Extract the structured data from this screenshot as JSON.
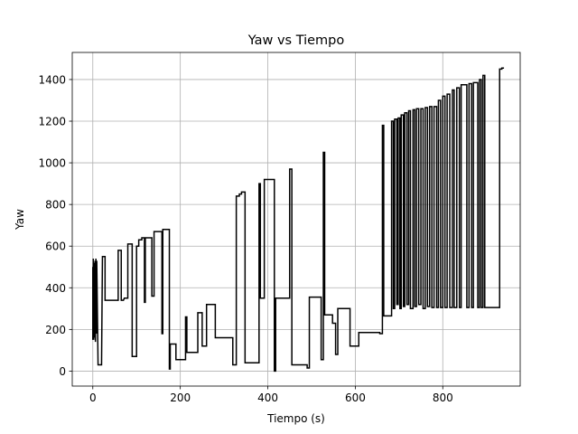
{
  "chart_data": {
    "type": "line",
    "title": "Yaw vs Tiempo",
    "xlabel": "Tiempo (s)",
    "ylabel": "Yaw",
    "xlim": [
      -47,
      977
    ],
    "ylim": [
      -72,
      1530
    ],
    "grid": true,
    "x_ticks": [
      0,
      200,
      400,
      600,
      800
    ],
    "y_ticks": [
      0,
      200,
      400,
      600,
      800,
      1000,
      1200,
      1400
    ],
    "series": [
      {
        "color": "#000000",
        "step_points": [
          [
            0,
            500
          ],
          [
            0,
            150
          ],
          [
            1,
            540
          ],
          [
            2,
            150
          ],
          [
            3,
            520
          ],
          [
            4,
            160
          ],
          [
            5,
            530
          ],
          [
            6,
            140
          ],
          [
            7,
            540
          ],
          [
            8,
            180
          ],
          [
            9,
            530
          ],
          [
            12,
            30
          ],
          [
            20,
            30
          ],
          [
            22,
            550
          ],
          [
            28,
            550
          ],
          [
            28,
            340
          ],
          [
            58,
            340
          ],
          [
            58,
            580
          ],
          [
            65,
            580
          ],
          [
            65,
            340
          ],
          [
            70,
            340
          ],
          [
            72,
            350
          ],
          [
            80,
            350
          ],
          [
            80,
            610
          ],
          [
            90,
            610
          ],
          [
            90,
            70
          ],
          [
            100,
            70
          ],
          [
            100,
            600
          ],
          [
            105,
            600
          ],
          [
            105,
            630
          ],
          [
            112,
            630
          ],
          [
            112,
            640
          ],
          [
            118,
            640
          ],
          [
            118,
            330
          ],
          [
            120,
            330
          ],
          [
            120,
            640
          ],
          [
            135,
            640
          ],
          [
            135,
            360
          ],
          [
            140,
            360
          ],
          [
            140,
            670
          ],
          [
            158,
            670
          ],
          [
            158,
            180
          ],
          [
            160,
            180
          ],
          [
            160,
            680
          ],
          [
            175,
            680
          ],
          [
            175,
            10
          ],
          [
            177,
            10
          ],
          [
            177,
            130
          ],
          [
            190,
            130
          ],
          [
            190,
            55
          ],
          [
            212,
            55
          ],
          [
            212,
            260
          ],
          [
            215,
            260
          ],
          [
            215,
            90
          ],
          [
            240,
            90
          ],
          [
            240,
            280
          ],
          [
            250,
            280
          ],
          [
            250,
            120
          ],
          [
            260,
            120
          ],
          [
            260,
            320
          ],
          [
            280,
            320
          ],
          [
            280,
            160
          ],
          [
            320,
            160
          ],
          [
            320,
            30
          ],
          [
            328,
            30
          ],
          [
            328,
            840
          ],
          [
            335,
            840
          ],
          [
            335,
            850
          ],
          [
            340,
            850
          ],
          [
            340,
            860
          ],
          [
            348,
            860
          ],
          [
            348,
            40
          ],
          [
            380,
            40
          ],
          [
            380,
            900
          ],
          [
            383,
            900
          ],
          [
            383,
            350
          ],
          [
            392,
            350
          ],
          [
            392,
            920
          ],
          [
            415,
            920
          ],
          [
            415,
            0
          ],
          [
            418,
            0
          ],
          [
            418,
            350
          ],
          [
            450,
            350
          ],
          [
            450,
            970
          ],
          [
            455,
            970
          ],
          [
            455,
            30
          ],
          [
            490,
            30
          ],
          [
            490,
            15
          ],
          [
            495,
            15
          ],
          [
            495,
            355
          ],
          [
            522,
            355
          ],
          [
            522,
            55
          ],
          [
            527,
            55
          ],
          [
            527,
            1050
          ],
          [
            530,
            1050
          ],
          [
            530,
            270
          ],
          [
            548,
            270
          ],
          [
            548,
            230
          ],
          [
            555,
            230
          ],
          [
            555,
            80
          ],
          [
            560,
            80
          ],
          [
            560,
            300
          ],
          [
            588,
            300
          ],
          [
            588,
            120
          ],
          [
            608,
            120
          ],
          [
            608,
            185
          ],
          [
            656,
            185
          ],
          [
            656,
            180
          ],
          [
            662,
            180
          ],
          [
            662,
            1180
          ],
          [
            665,
            1180
          ],
          [
            665,
            265
          ],
          [
            683,
            265
          ],
          [
            683,
            1200
          ],
          [
            687,
            1200
          ],
          [
            687,
            300
          ],
          [
            690,
            300
          ],
          [
            690,
            1210
          ],
          [
            695,
            1210
          ],
          [
            695,
            320
          ],
          [
            698,
            320
          ],
          [
            698,
            1215
          ],
          [
            702,
            1215
          ],
          [
            702,
            300
          ],
          [
            705,
            300
          ],
          [
            705,
            1230
          ],
          [
            710,
            1230
          ],
          [
            710,
            310
          ],
          [
            713,
            310
          ],
          [
            713,
            1240
          ],
          [
            718,
            1240
          ],
          [
            718,
            320
          ],
          [
            722,
            320
          ],
          [
            722,
            1250
          ],
          [
            726,
            1250
          ],
          [
            726,
            300
          ],
          [
            732,
            300
          ],
          [
            732,
            1255
          ],
          [
            736,
            1255
          ],
          [
            736,
            310
          ],
          [
            740,
            310
          ],
          [
            740,
            1260
          ],
          [
            745,
            1260
          ],
          [
            745,
            320
          ],
          [
            750,
            320
          ],
          [
            750,
            1260
          ],
          [
            755,
            1260
          ],
          [
            755,
            300
          ],
          [
            760,
            300
          ],
          [
            760,
            1265
          ],
          [
            765,
            1265
          ],
          [
            765,
            310
          ],
          [
            770,
            310
          ],
          [
            770,
            1270
          ],
          [
            775,
            1270
          ],
          [
            775,
            305
          ],
          [
            780,
            305
          ],
          [
            780,
            1270
          ],
          [
            786,
            1270
          ],
          [
            786,
            305
          ],
          [
            790,
            305
          ],
          [
            790,
            1300
          ],
          [
            795,
            1300
          ],
          [
            795,
            305
          ],
          [
            800,
            305
          ],
          [
            800,
            1320
          ],
          [
            805,
            1320
          ],
          [
            805,
            305
          ],
          [
            810,
            305
          ],
          [
            810,
            1330
          ],
          [
            816,
            1330
          ],
          [
            816,
            305
          ],
          [
            822,
            305
          ],
          [
            822,
            1350
          ],
          [
            826,
            1350
          ],
          [
            826,
            305
          ],
          [
            832,
            305
          ],
          [
            832,
            1360
          ],
          [
            838,
            1360
          ],
          [
            838,
            305
          ],
          [
            842,
            305
          ],
          [
            842,
            1375
          ],
          [
            855,
            1375
          ],
          [
            855,
            305
          ],
          [
            860,
            305
          ],
          [
            860,
            1380
          ],
          [
            866,
            1380
          ],
          [
            866,
            305
          ],
          [
            870,
            305
          ],
          [
            870,
            1385
          ],
          [
            880,
            1385
          ],
          [
            880,
            305
          ],
          [
            884,
            305
          ],
          [
            884,
            1400
          ],
          [
            888,
            1400
          ],
          [
            888,
            305
          ],
          [
            892,
            305
          ],
          [
            892,
            1420
          ],
          [
            896,
            1420
          ],
          [
            896,
            305
          ],
          [
            930,
            305
          ],
          [
            930,
            1450
          ],
          [
            935,
            1450
          ],
          [
            935,
            1455
          ],
          [
            940,
            1455
          ]
        ]
      }
    ]
  }
}
